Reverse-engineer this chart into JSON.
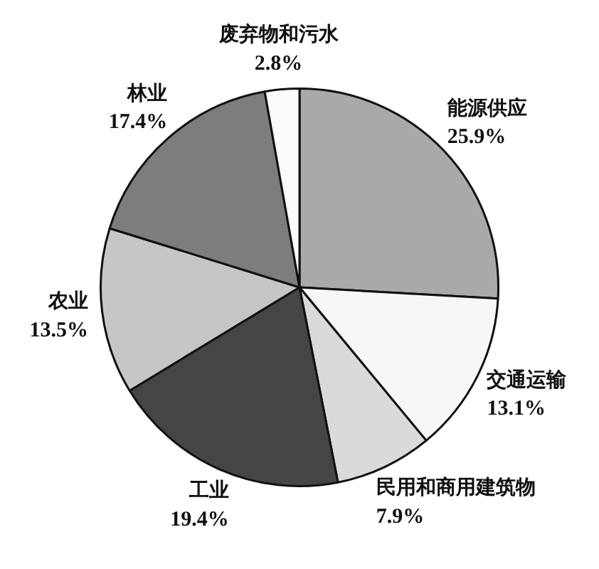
{
  "chart_data": {
    "type": "pie",
    "categories": [
      "能源供应",
      "交通运输",
      "民用和商用建筑物",
      "工业",
      "农业",
      "林业",
      "废弃物和污水"
    ],
    "values": [
      25.9,
      13.1,
      7.9,
      19.4,
      13.5,
      17.4,
      2.8
    ],
    "value_labels": [
      "25.9%",
      "13.1%",
      "7.9%",
      "19.4%",
      "13.5%",
      "17.4%",
      "2.8%"
    ],
    "colors": [
      "#a9a9a9",
      "#f7f7f7",
      "#dadada",
      "#454545",
      "#c6c6c6",
      "#7d7d7d",
      "#fbfbfb"
    ],
    "legend": false
  }
}
